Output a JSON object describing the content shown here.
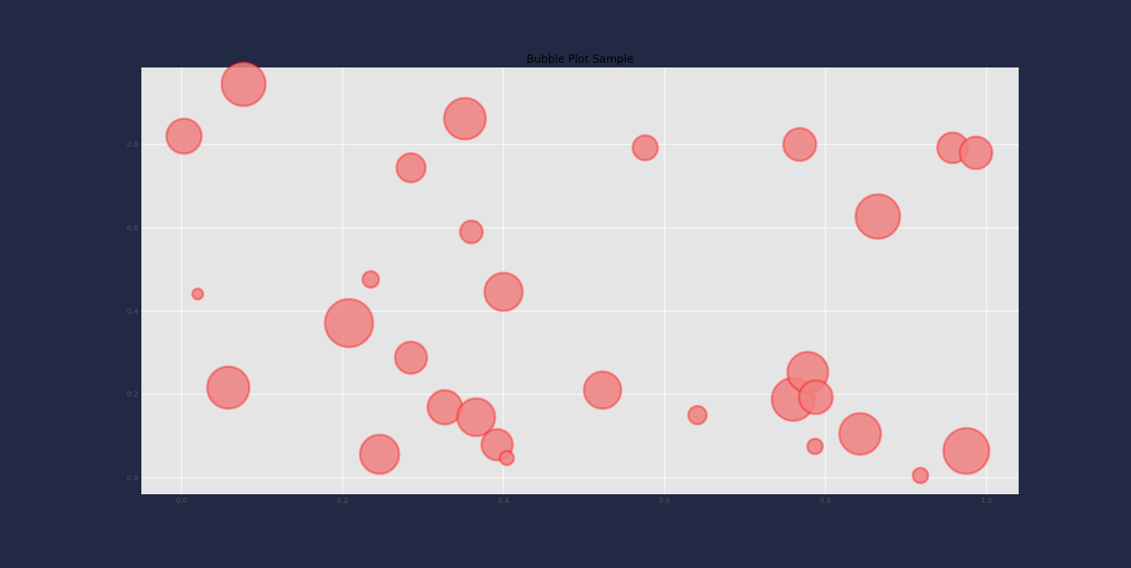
{
  "page": {
    "background_color": "#222944"
  },
  "chart_data": {
    "type": "scatter",
    "subtype": "bubble",
    "title": "Bubble Plot Sample",
    "xlabel": "",
    "ylabel": "",
    "xlim": [
      -0.05,
      1.04
    ],
    "ylim": [
      -0.04,
      0.985
    ],
    "x_ticks": [
      0.0,
      0.2,
      0.4,
      0.6,
      0.8,
      1.0
    ],
    "x_tick_labels": [
      "0.0",
      "0.2",
      "0.4",
      "0.6",
      "0.8",
      "1.0"
    ],
    "y_ticks": [
      0.0,
      0.2,
      0.4,
      0.6,
      0.8
    ],
    "y_tick_labels": [
      "0.0",
      "0.2",
      "0.4",
      "0.6",
      "0.8"
    ],
    "grid": true,
    "legend": "none",
    "colors": {
      "plot_background": "#e5e5e5",
      "grid": "#ffffff",
      "bubble_fill": "#f08080",
      "bubble_edge": "#ff0000",
      "tick_label": "#555555",
      "title": "#000000"
    },
    "series": [
      {
        "points": [
          {
            "x": 0.003,
            "y": 0.82,
            "size": 0.4
          },
          {
            "x": 0.077,
            "y": 0.945,
            "size": 0.68
          },
          {
            "x": 0.02,
            "y": 0.441,
            "size": 0.01
          },
          {
            "x": 0.058,
            "y": 0.216,
            "size": 0.62
          },
          {
            "x": 0.208,
            "y": 0.371,
            "size": 0.84
          },
          {
            "x": 0.235,
            "y": 0.476,
            "size": 0.05
          },
          {
            "x": 0.246,
            "y": 0.056,
            "size": 0.52
          },
          {
            "x": 0.285,
            "y": 0.744,
            "size": 0.25
          },
          {
            "x": 0.285,
            "y": 0.288,
            "size": 0.32
          },
          {
            "x": 0.327,
            "y": 0.169,
            "size": 0.38
          },
          {
            "x": 0.352,
            "y": 0.862,
            "size": 0.6
          },
          {
            "x": 0.36,
            "y": 0.59,
            "size": 0.13
          },
          {
            "x": 0.366,
            "y": 0.145,
            "size": 0.48
          },
          {
            "x": 0.392,
            "y": 0.079,
            "size": 0.3
          },
          {
            "x": 0.4,
            "y": 0.446,
            "size": 0.49
          },
          {
            "x": 0.404,
            "y": 0.047,
            "size": 0.03
          },
          {
            "x": 0.523,
            "y": 0.21,
            "size": 0.46
          },
          {
            "x": 0.576,
            "y": 0.792,
            "size": 0.17
          },
          {
            "x": 0.641,
            "y": 0.15,
            "size": 0.07
          },
          {
            "x": 0.76,
            "y": 0.188,
            "size": 0.65
          },
          {
            "x": 0.768,
            "y": 0.8,
            "size": 0.34
          },
          {
            "x": 0.778,
            "y": 0.253,
            "size": 0.57
          },
          {
            "x": 0.787,
            "y": 0.075,
            "size": 0.04
          },
          {
            "x": 0.788,
            "y": 0.193,
            "size": 0.36
          },
          {
            "x": 0.843,
            "y": 0.105,
            "size": 0.6
          },
          {
            "x": 0.865,
            "y": 0.627,
            "size": 0.7
          },
          {
            "x": 0.918,
            "y": 0.005,
            "size": 0.04
          },
          {
            "x": 0.958,
            "y": 0.792,
            "size": 0.29
          },
          {
            "x": 0.975,
            "y": 0.064,
            "size": 0.75
          },
          {
            "x": 0.987,
            "y": 0.78,
            "size": 0.33
          }
        ]
      }
    ]
  }
}
